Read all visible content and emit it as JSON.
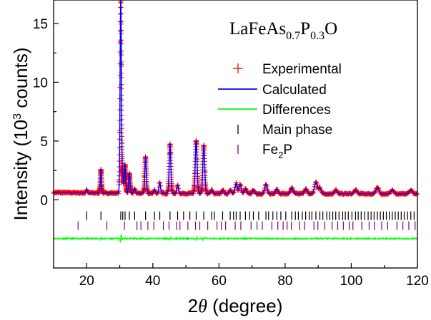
{
  "chart_data": {
    "type": "scatter",
    "annotation": {
      "base": "LaFeAs",
      "sub1": "0.7",
      "mid": "P",
      "sub2": "0.3",
      "end": "O"
    },
    "xlabel": {
      "prefix": "2",
      "theta": "θ",
      "rest": " (degree)"
    },
    "ylabel": {
      "main": "Intensity (10",
      "sup": "3",
      "rest": " counts)"
    },
    "xlim": [
      10,
      120
    ],
    "ylim": [
      -5.8,
      17
    ],
    "x_ticks": [
      "20",
      "40",
      "60",
      "80",
      "100",
      "120"
    ],
    "y_ticks": [
      "0",
      "5",
      "10",
      "15"
    ],
    "x_tick_values": [
      20,
      40,
      60,
      80,
      100,
      120
    ],
    "y_tick_values": [
      0,
      5,
      10,
      15
    ],
    "legend": {
      "placement": "top-right",
      "entries": [
        {
          "label": "Experimental",
          "marker": "plus",
          "color": "#ff0000"
        },
        {
          "label": "Calculated",
          "marker": "line",
          "color": "#0000ff"
        },
        {
          "label": "Differences",
          "marker": "line",
          "color": "#00ff00"
        },
        {
          "label": "Main phase",
          "marker": "tick",
          "color": "#000000"
        },
        {
          "label": "Fe",
          "sub": "2",
          "suffix": "P",
          "marker": "tick",
          "color": "#800080"
        }
      ]
    },
    "background": 0.5,
    "peaks": [
      {
        "x": 20.0,
        "h": 0.3
      },
      {
        "x": 24.3,
        "h": 2.0
      },
      {
        "x": 30.3,
        "h": 16.5
      },
      {
        "x": 30.9,
        "h": 1.5
      },
      {
        "x": 31.6,
        "h": 2.4
      },
      {
        "x": 32.9,
        "h": 1.7
      },
      {
        "x": 34.5,
        "h": 0.4
      },
      {
        "x": 37.8,
        "h": 3.1
      },
      {
        "x": 40.5,
        "h": 0.3
      },
      {
        "x": 42.1,
        "h": 0.9
      },
      {
        "x": 45.2,
        "h": 4.2
      },
      {
        "x": 47.5,
        "h": 0.7
      },
      {
        "x": 53.1,
        "h": 4.5
      },
      {
        "x": 55.4,
        "h": 4.1
      },
      {
        "x": 57.8,
        "h": 0.3
      },
      {
        "x": 61.1,
        "h": 0.3
      },
      {
        "x": 63.4,
        "h": 0.3
      },
      {
        "x": 65.2,
        "h": 0.9
      },
      {
        "x": 66.4,
        "h": 0.8
      },
      {
        "x": 68.0,
        "h": 0.4
      },
      {
        "x": 70.4,
        "h": 0.3
      },
      {
        "x": 74.2,
        "h": 0.8
      },
      {
        "x": 77.5,
        "h": 0.4
      },
      {
        "x": 82.0,
        "h": 0.5
      },
      {
        "x": 86.2,
        "h": 0.4
      },
      {
        "x": 89.3,
        "h": 1.0
      },
      {
        "x": 90.5,
        "h": 0.5
      },
      {
        "x": 95.3,
        "h": 0.3
      },
      {
        "x": 101.3,
        "h": 0.3
      },
      {
        "x": 107.9,
        "h": 0.5
      },
      {
        "x": 112.4,
        "h": 0.3
      },
      {
        "x": 118.0,
        "h": 0.3
      }
    ],
    "main_phase_y": -1.35,
    "fe2p_y": -2.2,
    "difference_y": -3.3,
    "main_phase_ticks": [
      20.0,
      24.3,
      30.3,
      30.9,
      31.6,
      32.9,
      34.5,
      37.8,
      40.5,
      42.1,
      45.2,
      47.5,
      49.3,
      51.2,
      53.1,
      55.4,
      57.8,
      58.6,
      61.1,
      63.4,
      64.4,
      65.2,
      66.4,
      68.0,
      69.3,
      70.4,
      72.0,
      74.2,
      75.0,
      76.3,
      77.5,
      78.7,
      80.2,
      82.0,
      83.1,
      84.0,
      85.2,
      86.2,
      87.3,
      88.1,
      89.3,
      90.5,
      91.4,
      92.6,
      93.5,
      94.4,
      95.3,
      96.3,
      97.4,
      98.2,
      99.1,
      100.2,
      101.3,
      102.1,
      103.0,
      104.0,
      105.1,
      106.0,
      106.9,
      107.9,
      108.8,
      109.7,
      110.6,
      111.5,
      112.4,
      113.3,
      114.2,
      115.1,
      116.0,
      117.0,
      118.0,
      119.0
    ],
    "fe2p_ticks": [
      17.4,
      26.1,
      31.4,
      35.2,
      36.4,
      38.5,
      40.3,
      43.2,
      44.9,
      47.2,
      48.2,
      50.6,
      52.9,
      54.2,
      56.6,
      59.4,
      60.7,
      62.0,
      64.9,
      66.6,
      69.7,
      71.5,
      73.1,
      76.0,
      77.8,
      79.4,
      80.6,
      81.9,
      84.4,
      85.9,
      88.7,
      89.9,
      92.0,
      94.2,
      95.9,
      97.6,
      99.4,
      100.5,
      103.2,
      105.4,
      107.0,
      109.2,
      111.0,
      113.8,
      115.6,
      117.4,
      119.3
    ]
  }
}
